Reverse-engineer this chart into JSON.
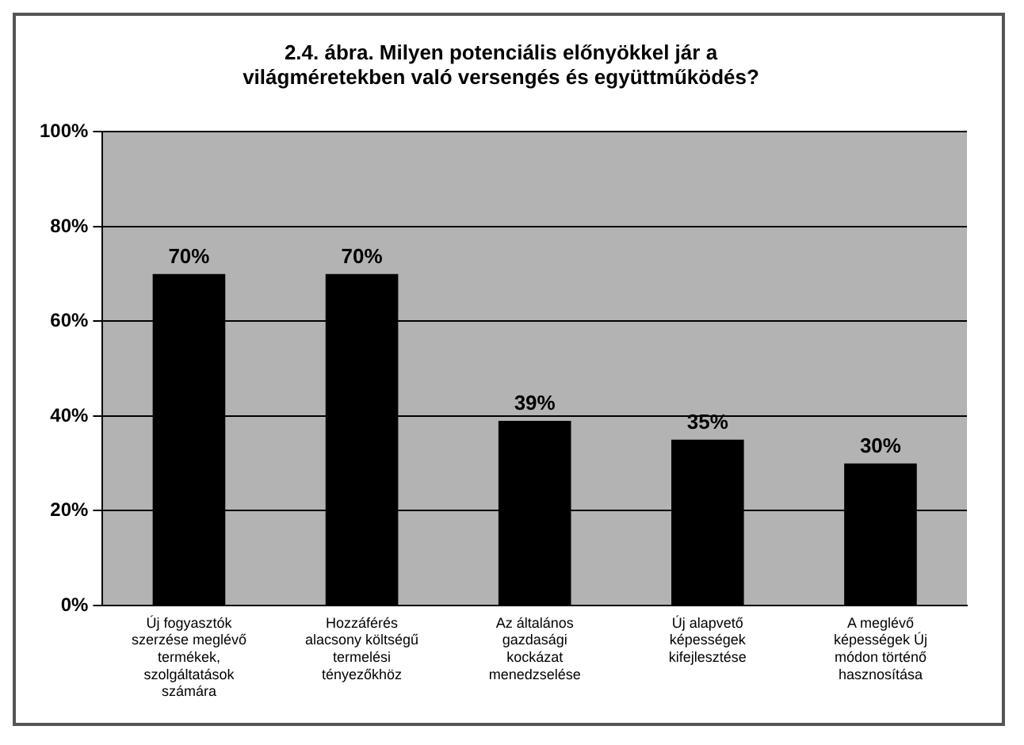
{
  "chart_data": {
    "type": "bar",
    "title": "2.4. ábra. Milyen potenciális előnyökkel jár a világméretekben való versengés és együttműködés?",
    "categories": [
      "Új fogyasztók szerzése meglévő termékek, szolgáltatások számára",
      "Hozzáférés alacsony költségű termelési tényezőkhöz",
      "Az általános gazdasági kockázat menedzselése",
      "Új alapvető képességek kifejlesztése",
      "A meglévő képességek Új módon történő hasznosítása"
    ],
    "values": [
      70,
      70,
      39,
      35,
      30
    ],
    "color": "#000000",
    "ylim": [
      0,
      100
    ],
    "yticks": [
      {
        "value": 0,
        "label": "0%"
      },
      {
        "value": 20,
        "label": "20%"
      },
      {
        "value": 40,
        "label": "40%"
      },
      {
        "value": 60,
        "label": "60%"
      },
      {
        "value": 80,
        "label": "80%"
      },
      {
        "value": 100,
        "label": "100%"
      }
    ],
    "value_labels": [
      "70%",
      "70%",
      "39%",
      "35%",
      "30%"
    ],
    "grid": "y",
    "legend": false
  }
}
